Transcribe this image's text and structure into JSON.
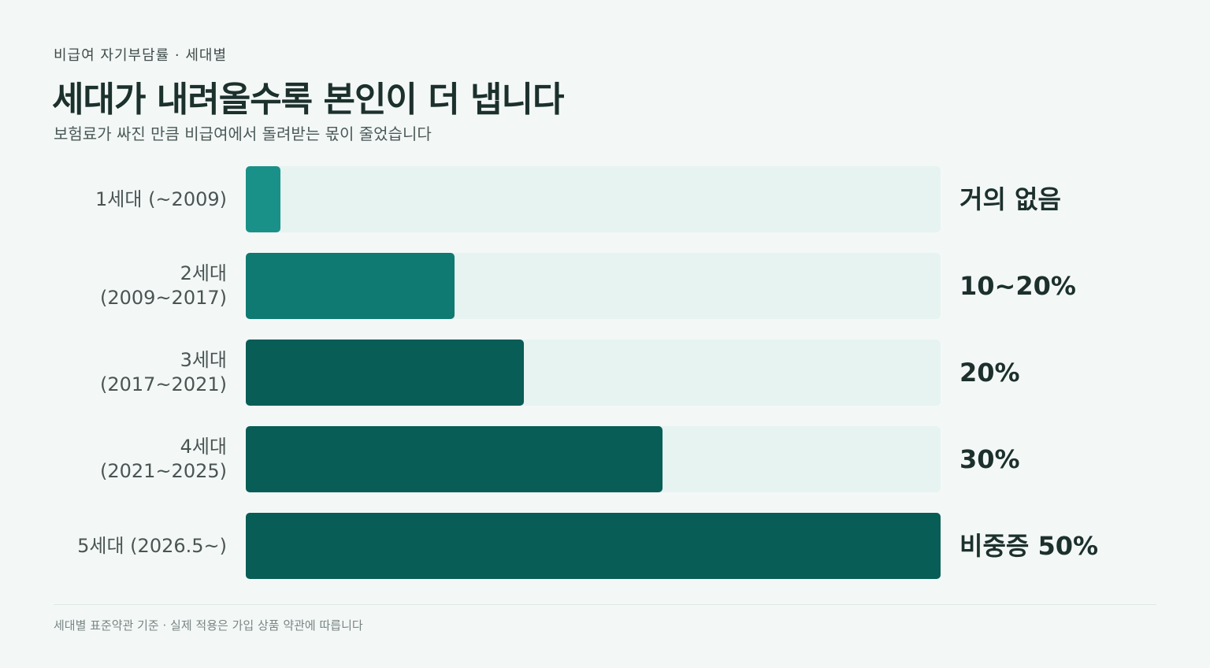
{
  "header": {
    "eyebrow": "비급여 자기부담률 · 세대별",
    "title": "세대가 내려올수록 본인이 더 냅니다",
    "subtitle": "보험료가 싸진 만큼 비급여에서 돌려받는 몫이 줄었습니다"
  },
  "chart_data": {
    "type": "bar",
    "orientation": "horizontal",
    "categories": [
      [
        "1세대 (~2009)"
      ],
      [
        "2세대",
        "(2009~2017)"
      ],
      [
        "3세대",
        "(2017~2021)"
      ],
      [
        "4세대",
        "(2021~2025)"
      ],
      [
        "5세대 (2026.5~)"
      ]
    ],
    "values": [
      5,
      30,
      40,
      60,
      100
    ],
    "value_labels": [
      "거의 없음",
      "10~20%",
      "20%",
      "30%",
      "비중증 50%"
    ],
    "bar_colors": [
      "#1a9188",
      "#0e7a72",
      "#085d56",
      "#085d56",
      "#085d56"
    ],
    "track_color": "#e6f3f1",
    "xlim": [
      0,
      100
    ]
  },
  "footer": {
    "note": "세대별 표준약관 기준 · 실제 적용은 가입 상품 약관에 따릅니다"
  }
}
